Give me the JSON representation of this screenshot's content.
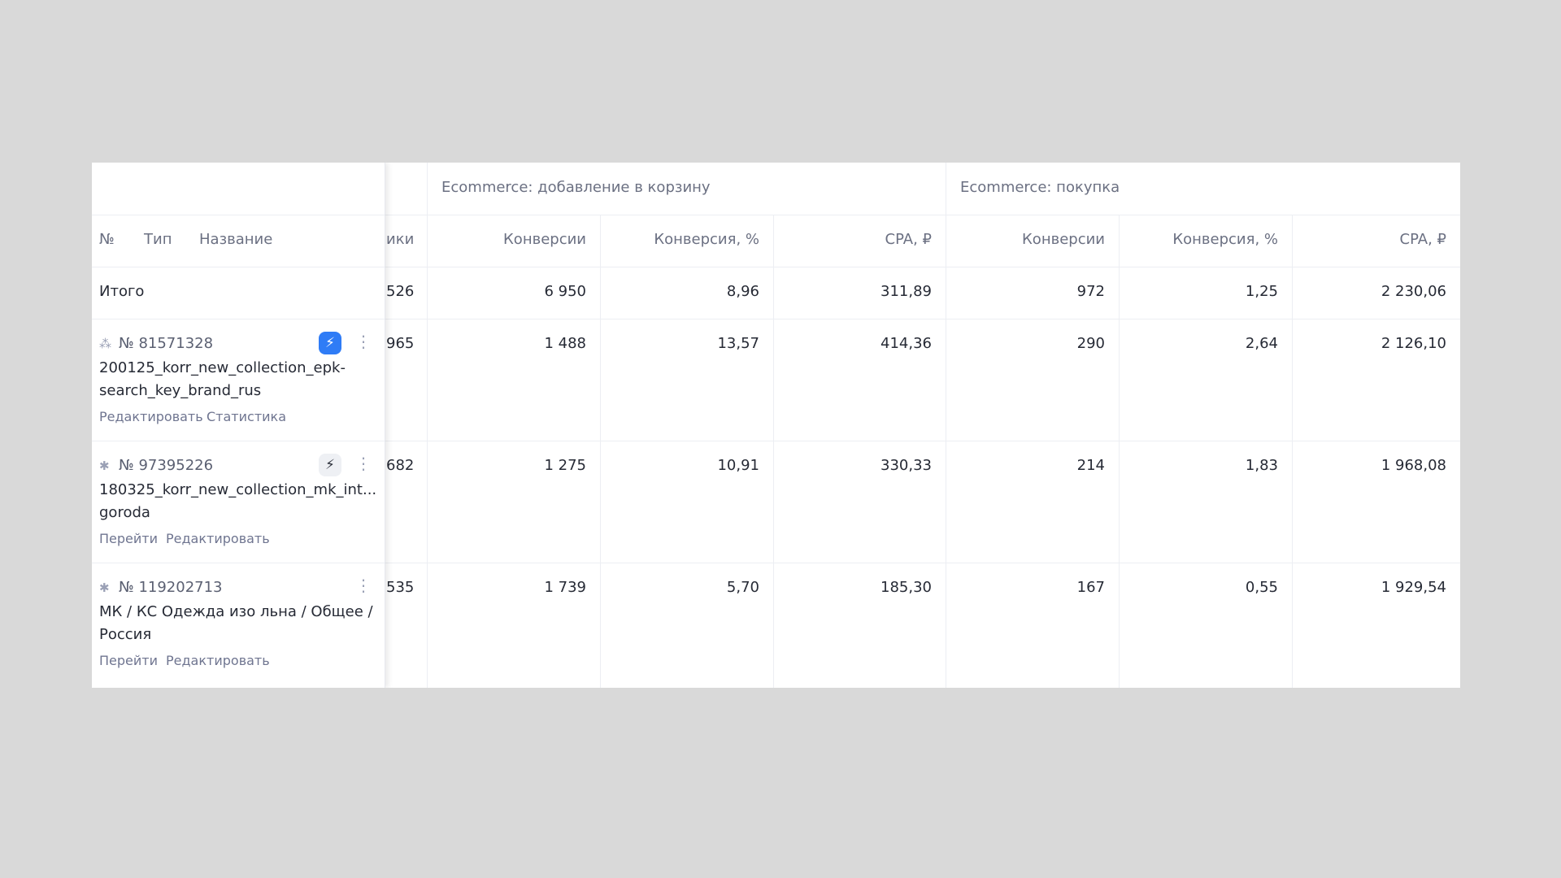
{
  "groups": [
    "Ecommerce: добавление в корзину",
    "Ecommerce: покупка"
  ],
  "headers": {
    "num": "№",
    "type": "Тип",
    "name": "Название",
    "partial": "ики",
    "cols": [
      "Конверсии",
      "Конверсия, %",
      "CPA, ₽",
      "Конверсии",
      "Конверсия, %",
      "CPA, ₽"
    ]
  },
  "total": {
    "label": "Итого",
    "partial": "526",
    "values": [
      "6 950",
      "8,96",
      "311,89",
      "972",
      "1,25",
      "2 230,06"
    ]
  },
  "rows": [
    {
      "id": "№ 81571328",
      "name1": "200125_korr_new_collection_epk-",
      "name2": "search_key_brand_rus",
      "links": [
        "Редактировать",
        "Статистика"
      ],
      "bolt": "active",
      "partial": "965",
      "values": [
        "1 488",
        "13,57",
        "414,36",
        "290",
        "2,64",
        "2 126,10"
      ]
    },
    {
      "id": "№ 97395226",
      "name1": "180325_korr_new_collection_mk_int...",
      "name2": "goroda",
      "links": [
        "Перейти",
        "Редактировать"
      ],
      "bolt": "inactive",
      "partial": "682",
      "values": [
        "1 275",
        "10,91",
        "330,33",
        "214",
        "1,83",
        "1 968,08"
      ]
    },
    {
      "id": "№ 119202713",
      "name1": "МК / КС Одежда изо льна / Общее /",
      "name2": "Россия",
      "links": [
        "Перейти",
        "Редактировать"
      ],
      "bolt": "none",
      "partial": "535",
      "values": [
        "1 739",
        "5,70",
        "185,30",
        "167",
        "0,55",
        "1 929,54"
      ]
    }
  ],
  "colors": {
    "accent": "#2f7cf6",
    "background": "#d9d9d9"
  }
}
